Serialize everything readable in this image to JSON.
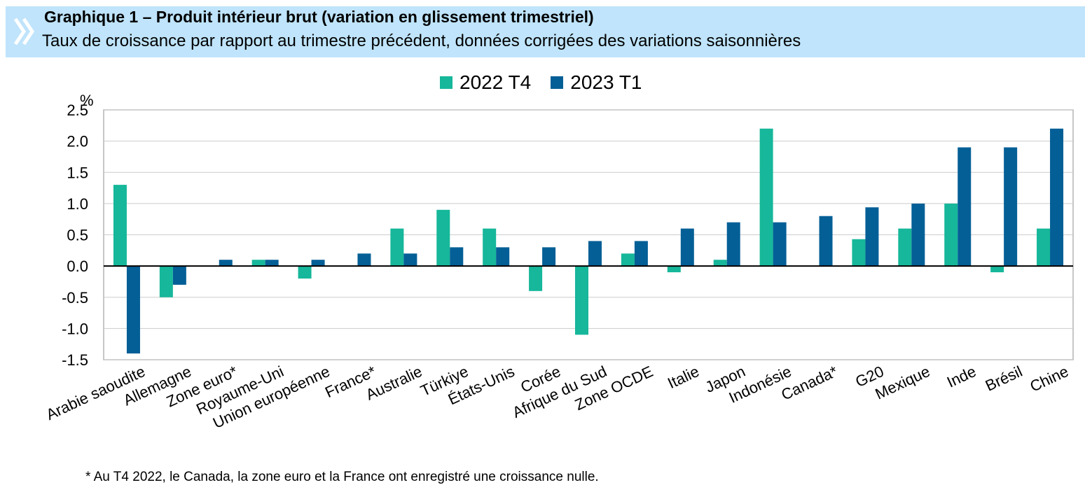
{
  "header": {
    "title": "Graphique 1 – Produit intérieur brut (variation en glissement trimestriel)",
    "subtitle": "Taux de croissance par rapport au trimestre précédent, données corrigées des variations saisonnières",
    "background_color": "#bfe4fb",
    "icon": "double-chevron-right-icon"
  },
  "chart_data": {
    "type": "bar",
    "title": "Graphique 1 – Produit intérieur brut (variation en glissement trimestriel)",
    "subtitle": "Taux de croissance par rapport au trimestre précédent, données corrigées des variations saisonnières",
    "ylabel": "%",
    "xlabel": "",
    "ylim": [
      -1.5,
      2.5
    ],
    "yticks": [
      "2.5",
      "2.0",
      "1.5",
      "1.0",
      "0.5",
      "0.0",
      "-0.5",
      "-1.0",
      "-1.5"
    ],
    "ytick_values": [
      2.5,
      2.0,
      1.5,
      1.0,
      0.5,
      0.0,
      -0.5,
      -1.0,
      -1.5
    ],
    "grid": true,
    "legend_position": "top-center",
    "categories": [
      "Arabie saoudite",
      "Allemagne",
      "Zone euro*",
      "Royaume-Uni",
      "Union européenne",
      "France*",
      "Australie",
      "Türkiye",
      "États-Unis",
      "Corée",
      "Afrique du Sud",
      "Zone OCDE",
      "Italie",
      "Japon",
      "Indonésie",
      "Canada*",
      "G20",
      "Mexique",
      "Inde",
      "Brésil",
      "Chine"
    ],
    "series": [
      {
        "name": "2022 T4",
        "color": "#16b79a",
        "values": [
          1.3,
          -0.5,
          0.0,
          0.1,
          -0.2,
          0.0,
          0.6,
          0.9,
          0.6,
          -0.4,
          -1.1,
          0.2,
          -0.1,
          0.1,
          2.2,
          0.0,
          0.43,
          0.6,
          1.0,
          -0.1,
          0.6
        ]
      },
      {
        "name": "2023 T1",
        "color": "#045f96",
        "values": [
          -1.4,
          -0.3,
          0.1,
          0.1,
          0.1,
          0.2,
          0.2,
          0.3,
          0.3,
          0.3,
          0.4,
          0.4,
          0.6,
          0.7,
          0.7,
          0.8,
          0.94,
          1.0,
          1.9,
          1.9,
          2.2
        ]
      }
    ]
  },
  "footnote": "* Au T4 2022, le Canada, la zone euro et la France ont enregistré une croissance nulle."
}
